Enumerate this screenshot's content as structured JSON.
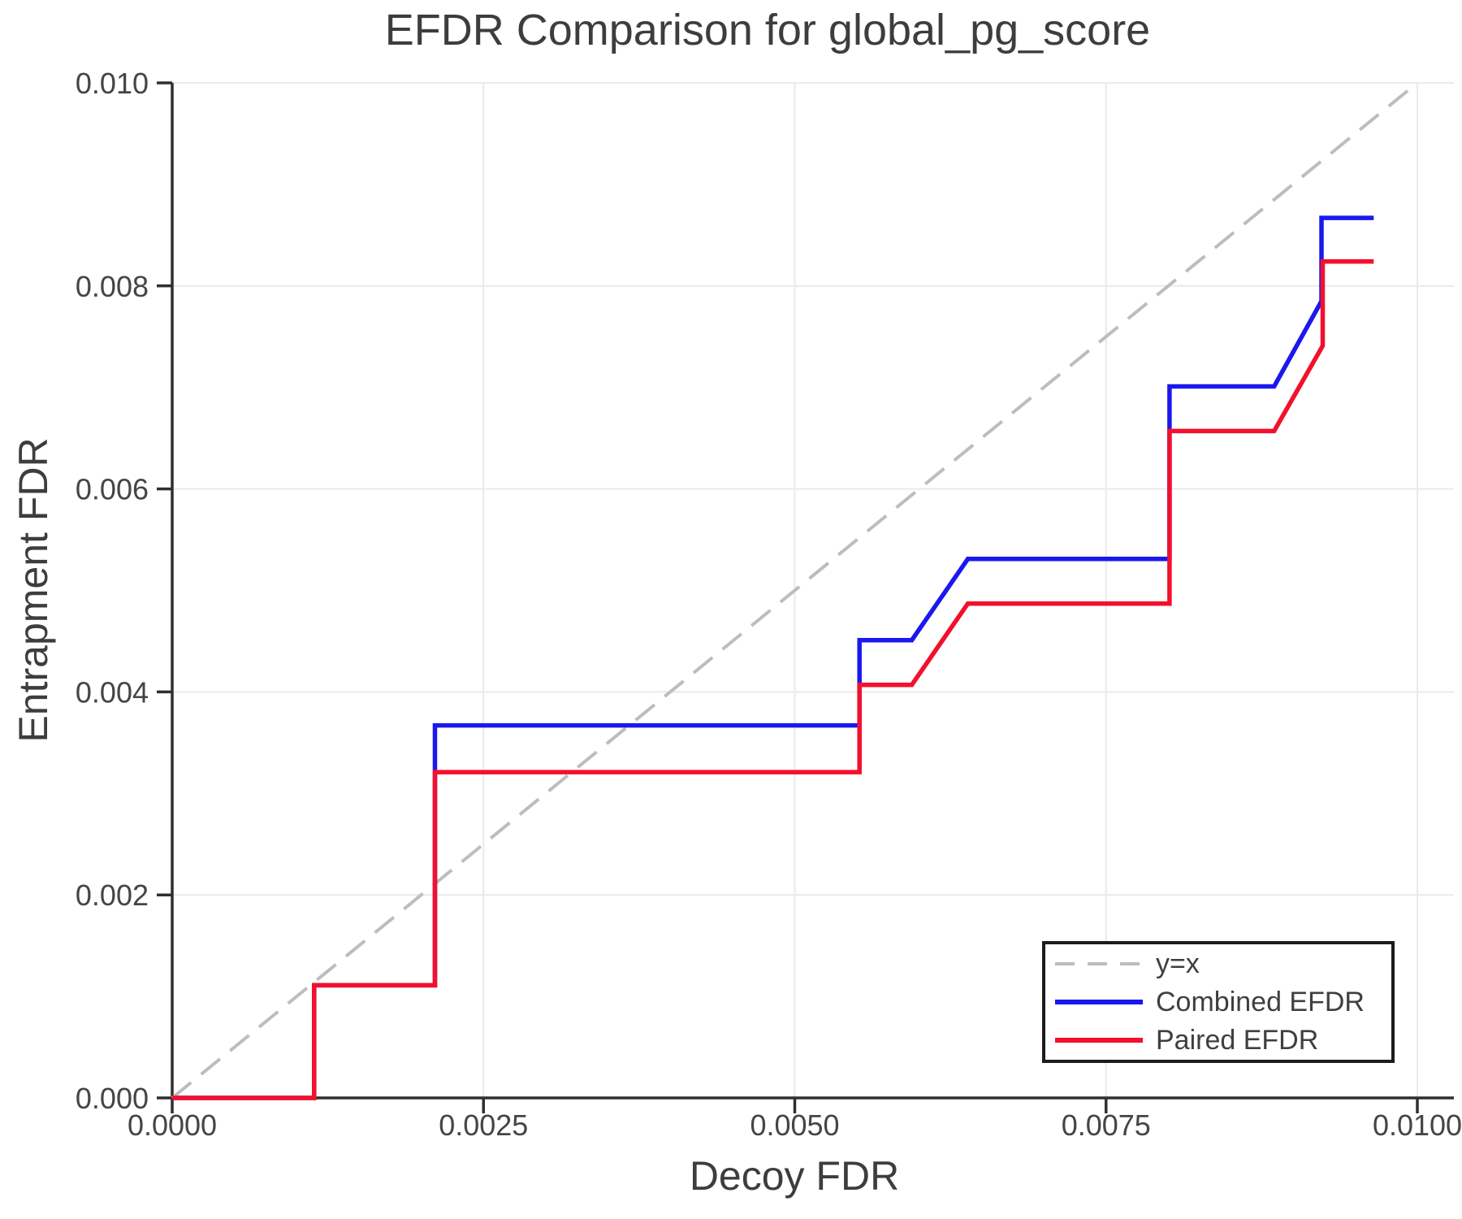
{
  "chart_data": {
    "type": "line",
    "title": "EFDR Comparison for global_pg_score",
    "xlabel": "Decoy FDR",
    "ylabel": "Entrapment FDR",
    "xlim": [
      0,
      0.01
    ],
    "ylim": [
      0,
      0.01
    ],
    "x_ticks": [
      0,
      0.0025,
      0.005,
      0.0075,
      0.01
    ],
    "x_tick_labels": [
      "0.0000",
      "0.0025",
      "0.0050",
      "0.0075",
      "0.0100"
    ],
    "y_ticks": [
      0,
      0.002,
      0.004,
      0.006,
      0.008,
      0.01
    ],
    "y_tick_labels": [
      "0.000",
      "0.002",
      "0.004",
      "0.006",
      "0.008",
      "0.010"
    ],
    "grid": true,
    "legend_position": "lower right",
    "axis_color": "#2f2f2f",
    "grid_color": "#eaeaea",
    "series": [
      {
        "name": "y=x",
        "color": "#bdbdbd",
        "style": "dashed",
        "width": 4,
        "points": [
          [
            0,
            0
          ],
          [
            0.01,
            0.01
          ]
        ]
      },
      {
        "name": "Combined EFDR",
        "color": "#1a18ee",
        "style": "solid",
        "width": 5.5,
        "points": [
          [
            0,
            0
          ],
          [
            0.00114,
            0
          ],
          [
            0.00114,
            0.00111
          ],
          [
            0.00211,
            0.00111
          ],
          [
            0.00211,
            0.00367
          ],
          [
            0.00552,
            0.00367
          ],
          [
            0.00552,
            0.00451
          ],
          [
            0.00594,
            0.00451
          ],
          [
            0.00639,
            0.00531
          ],
          [
            0.00801,
            0.00531
          ],
          [
            0.00801,
            0.00701
          ],
          [
            0.00885,
            0.00701
          ],
          [
            0.00923,
            0.00785
          ],
          [
            0.00923,
            0.00867
          ],
          [
            0.00965,
            0.00867
          ]
        ]
      },
      {
        "name": "Paired EFDR",
        "color": "#f3102c",
        "style": "solid",
        "width": 5.5,
        "points": [
          [
            0,
            0
          ],
          [
            0.00114,
            0
          ],
          [
            0.00114,
            0.00111
          ],
          [
            0.00211,
            0.00111
          ],
          [
            0.00211,
            0.00321
          ],
          [
            0.00552,
            0.00321
          ],
          [
            0.00552,
            0.00407
          ],
          [
            0.00594,
            0.00407
          ],
          [
            0.00639,
            0.00487
          ],
          [
            0.00801,
            0.00487
          ],
          [
            0.00801,
            0.00657
          ],
          [
            0.00885,
            0.00657
          ],
          [
            0.00924,
            0.00741
          ],
          [
            0.00924,
            0.00824
          ],
          [
            0.00965,
            0.00824
          ]
        ]
      }
    ]
  }
}
